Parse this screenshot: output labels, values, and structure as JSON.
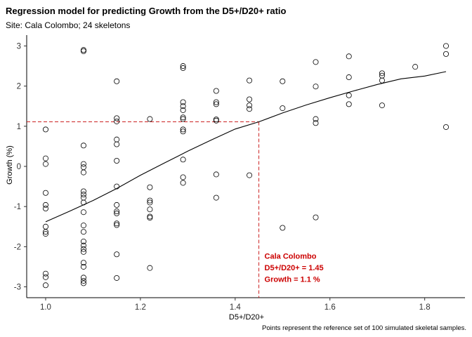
{
  "chart_data": {
    "type": "scatter",
    "title": "Regression model for predicting Growth from the D5+/D20+ ratio",
    "subtitle": "Site: Cala Colombo; 24 skeletons",
    "xlabel": "D5+/D20+",
    "ylabel": "Growth (%)",
    "caption": "Points represent the reference set of 100 simulated skeletal samples.",
    "xlim": [
      0.96,
      1.885
    ],
    "ylim": [
      -3.27,
      3.27
    ],
    "x_ticks": [
      1.0,
      1.2,
      1.4,
      1.6,
      1.8
    ],
    "x_tick_labels": [
      "1.0",
      "1.2",
      "1.4",
      "1.6",
      "1.8"
    ],
    "y_ticks": [
      -3,
      -2,
      -1,
      0,
      1,
      2,
      3
    ],
    "y_tick_labels": [
      "-3",
      "-2",
      "-1",
      "0",
      "1",
      "2",
      "3"
    ],
    "grid": false,
    "legend": "none",
    "points": [
      [
        1.0,
        0.92
      ],
      [
        1.0,
        0.2
      ],
      [
        1.0,
        0.06
      ],
      [
        1.0,
        -0.66
      ],
      [
        1.0,
        -0.96
      ],
      [
        1.0,
        -1.05
      ],
      [
        1.0,
        -1.5
      ],
      [
        1.0,
        -1.63
      ],
      [
        1.0,
        -1.68
      ],
      [
        1.0,
        -2.67
      ],
      [
        1.0,
        -2.76
      ],
      [
        1.0,
        -2.96
      ],
      [
        1.08,
        2.9
      ],
      [
        1.08,
        2.87
      ],
      [
        1.08,
        0.52
      ],
      [
        1.08,
        0.06
      ],
      [
        1.08,
        -0.02
      ],
      [
        1.08,
        -0.15
      ],
      [
        1.08,
        -0.62
      ],
      [
        1.08,
        -0.7
      ],
      [
        1.08,
        -0.78
      ],
      [
        1.08,
        -0.9
      ],
      [
        1.08,
        -1.14
      ],
      [
        1.08,
        -1.47
      ],
      [
        1.08,
        -1.63
      ],
      [
        1.08,
        -1.87
      ],
      [
        1.08,
        -1.97
      ],
      [
        1.08,
        -2.06
      ],
      [
        1.08,
        -2.13
      ],
      [
        1.08,
        -2.4
      ],
      [
        1.08,
        -2.5
      ],
      [
        1.08,
        -2.77
      ],
      [
        1.08,
        -2.85
      ],
      [
        1.08,
        -2.91
      ],
      [
        1.15,
        2.12
      ],
      [
        1.15,
        1.2
      ],
      [
        1.15,
        1.12
      ],
      [
        1.15,
        0.67
      ],
      [
        1.15,
        0.55
      ],
      [
        1.15,
        0.14
      ],
      [
        1.15,
        -0.5
      ],
      [
        1.15,
        -0.96
      ],
      [
        1.15,
        -1.12
      ],
      [
        1.15,
        -1.17
      ],
      [
        1.15,
        -1.42
      ],
      [
        1.15,
        -1.46
      ],
      [
        1.15,
        -2.19
      ],
      [
        1.15,
        -2.78
      ],
      [
        1.22,
        1.18
      ],
      [
        1.22,
        -0.52
      ],
      [
        1.22,
        -0.85
      ],
      [
        1.22,
        -0.9
      ],
      [
        1.22,
        -1.07
      ],
      [
        1.22,
        -1.25
      ],
      [
        1.22,
        -1.28
      ],
      [
        1.22,
        -2.53
      ],
      [
        1.29,
        2.5
      ],
      [
        1.29,
        2.45
      ],
      [
        1.29,
        1.6
      ],
      [
        1.29,
        1.5
      ],
      [
        1.29,
        1.4
      ],
      [
        1.29,
        1.22
      ],
      [
        1.29,
        1.18
      ],
      [
        1.29,
        0.92
      ],
      [
        1.29,
        0.87
      ],
      [
        1.29,
        0.17
      ],
      [
        1.29,
        -0.27
      ],
      [
        1.29,
        -0.41
      ],
      [
        1.36,
        1.88
      ],
      [
        1.36,
        1.6
      ],
      [
        1.36,
        1.55
      ],
      [
        1.36,
        1.17
      ],
      [
        1.36,
        1.14
      ],
      [
        1.36,
        -0.2
      ],
      [
        1.36,
        -0.78
      ],
      [
        1.43,
        2.14
      ],
      [
        1.43,
        1.67
      ],
      [
        1.43,
        1.52
      ],
      [
        1.43,
        1.43
      ],
      [
        1.43,
        -0.22
      ],
      [
        1.5,
        2.12
      ],
      [
        1.5,
        1.45
      ],
      [
        1.5,
        -1.53
      ],
      [
        1.57,
        2.6
      ],
      [
        1.57,
        1.99
      ],
      [
        1.57,
        1.18
      ],
      [
        1.57,
        1.08
      ],
      [
        1.57,
        -1.27
      ],
      [
        1.64,
        2.74
      ],
      [
        1.64,
        2.22
      ],
      [
        1.64,
        1.77
      ],
      [
        1.64,
        1.55
      ],
      [
        1.71,
        2.32
      ],
      [
        1.71,
        2.26
      ],
      [
        1.71,
        2.14
      ],
      [
        1.71,
        1.52
      ],
      [
        1.78,
        2.48
      ],
      [
        1.845,
        3.0
      ],
      [
        1.845,
        2.8
      ],
      [
        1.845,
        0.98
      ]
    ],
    "regression_line": [
      [
        1.0,
        -1.38
      ],
      [
        1.05,
        -1.12
      ],
      [
        1.1,
        -0.85
      ],
      [
        1.15,
        -0.55
      ],
      [
        1.2,
        -0.22
      ],
      [
        1.25,
        0.08
      ],
      [
        1.3,
        0.38
      ],
      [
        1.35,
        0.66
      ],
      [
        1.4,
        0.93
      ],
      [
        1.45,
        1.11
      ],
      [
        1.5,
        1.33
      ],
      [
        1.55,
        1.53
      ],
      [
        1.6,
        1.71
      ],
      [
        1.65,
        1.88
      ],
      [
        1.7,
        2.04
      ],
      [
        1.75,
        2.18
      ],
      [
        1.8,
        2.25
      ],
      [
        1.845,
        2.36
      ]
    ],
    "prediction": {
      "x": 1.45,
      "y": 1.11
    },
    "annotation": {
      "lines": [
        "Cala Colombo",
        "D5+/D20+ = 1.45",
        "Growth = 1.1 %"
      ],
      "color": "#cc0000"
    },
    "colors": {
      "points": "#000000",
      "line": "#000000",
      "guide": "#cc2222"
    }
  }
}
